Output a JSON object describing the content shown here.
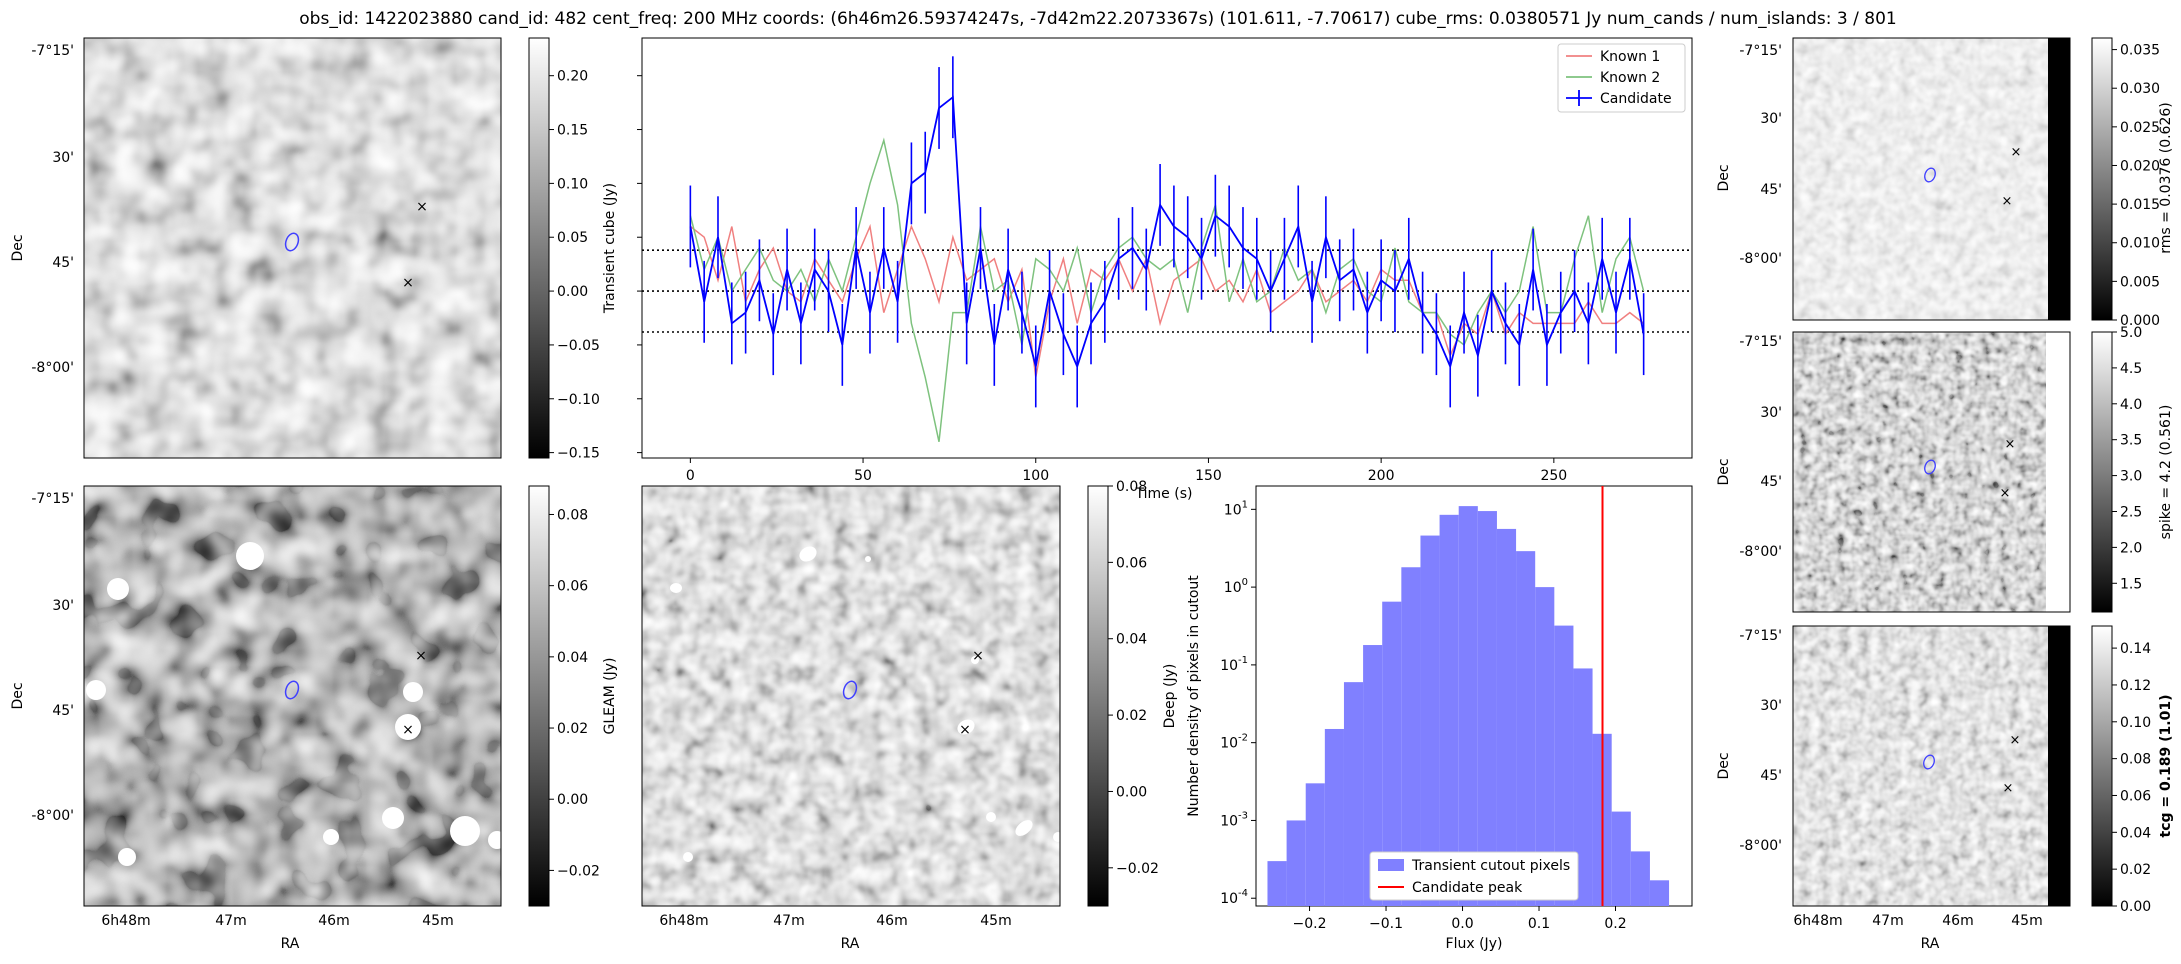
{
  "figure": {
    "title": "obs_id: 1422023880 cand_id: 482 cent_freq: 200 MHz coords: (6h46m26.59374247s, -7d42m22.2073367s) (101.611, -7.70617) cube_rms: 0.0380571 Jy num_cands / num_islands: 3 / 801"
  },
  "colors": {
    "known1": "#f08080",
    "known2": "#7ec27e",
    "candidate": "#0000ff",
    "hist_fill": "#8080ff",
    "peak_line": "#ff0000",
    "marker_green": "#00a000",
    "marker_red": "#ff0000",
    "ellipse": "#4040ff"
  },
  "sky_axes": {
    "ra_label": "RA",
    "dec_label": "Dec",
    "ra_ticks": [
      "6h48m",
      "47m",
      "46m",
      "45m"
    ],
    "dec_ticks": [
      "-7°15'",
      "30'",
      "45'",
      "-8°00'"
    ]
  },
  "images": {
    "transient": {
      "cbar_label": "Transient cube (Jy)",
      "cbar_ticks": [
        0.2,
        0.15,
        0.1,
        0.05,
        0.0,
        -0.05,
        -0.1,
        -0.15
      ],
      "cbar_tick_labels": [
        "0.20",
        "0.15",
        "0.10",
        "0.05",
        "0.00",
        "−0.05",
        "−0.10",
        "−0.15"
      ],
      "cbar_range": [
        -0.155,
        0.235
      ]
    },
    "gleam": {
      "cbar_label": "GLEAM (Jy)",
      "cbar_ticks": [
        0.08,
        0.06,
        0.04,
        0.02,
        0.0,
        -0.02
      ],
      "cbar_tick_labels": [
        "0.08",
        "0.06",
        "0.04",
        "0.02",
        "0.00",
        "−0.02"
      ],
      "cbar_range": [
        -0.03,
        0.088
      ]
    },
    "deep": {
      "cbar_label": "Deep (Jy)",
      "cbar_ticks": [
        0.08,
        0.06,
        0.04,
        0.02,
        0.0,
        -0.02
      ],
      "cbar_tick_labels": [
        "0.08",
        "0.06",
        "0.04",
        "0.02",
        "0.00",
        "−0.02"
      ],
      "cbar_range": [
        -0.03,
        0.08
      ]
    },
    "rms": {
      "cbar_label": "rms = 0.0376 (0.626)",
      "cbar_ticks": [
        0.035,
        0.03,
        0.025,
        0.02,
        0.015,
        0.01,
        0.005,
        0.0
      ],
      "cbar_tick_labels": [
        "0.035",
        "0.030",
        "0.025",
        "0.020",
        "0.015",
        "0.010",
        "0.005",
        "0.000"
      ],
      "cbar_range": [
        0.0,
        0.0365
      ]
    },
    "spike": {
      "cbar_label": "spike = 4.2 (0.561)",
      "cbar_ticks": [
        5.0,
        4.5,
        4.0,
        3.5,
        3.0,
        2.5,
        2.0,
        1.5
      ],
      "cbar_tick_labels": [
        "5.0",
        "4.5",
        "4.0",
        "3.5",
        "3.0",
        "2.5",
        "2.0",
        "1.5"
      ],
      "cbar_range": [
        1.1,
        5.0
      ]
    },
    "tcg": {
      "cbar_label": "tcg = 0.189 (1.01)",
      "cbar_ticks": [
        0.14,
        0.12,
        0.1,
        0.08,
        0.06,
        0.04,
        0.02,
        0.0
      ],
      "cbar_tick_labels": [
        "0.14",
        "0.12",
        "0.10",
        "0.08",
        "0.06",
        "0.04",
        "0.02",
        "0.00"
      ],
      "cbar_range": [
        0.0,
        0.152
      ]
    }
  },
  "chart_data": [
    {
      "type": "line",
      "id": "lightcurve",
      "xlabel": "Time (s)",
      "ylabel": "Transient cube (Jy)",
      "xlim": [
        -14,
        290
      ],
      "ylim": [
        -0.155,
        0.235
      ],
      "x_ticks": [
        0,
        50,
        100,
        150,
        200,
        250
      ],
      "y_ticks": [
        0.2,
        0.15,
        0.1,
        0.05,
        0.0,
        -0.05,
        -0.1,
        -0.15
      ],
      "y_tick_labels": [
        "0.20",
        "0.15",
        "0.10",
        "0.05",
        "0.00",
        "−0.05",
        "−0.10",
        "−0.15"
      ],
      "legend": [
        "Known 1",
        "Known 2",
        "Candidate"
      ],
      "legend_loc": "upper right",
      "hlines": [
        0.038,
        0.0,
        -0.038
      ],
      "x": [
        0,
        4,
        8,
        12,
        16,
        20,
        24,
        28,
        32,
        36,
        40,
        44,
        48,
        52,
        56,
        60,
        64,
        68,
        72,
        76,
        80,
        84,
        88,
        92,
        96,
        100,
        104,
        108,
        112,
        116,
        120,
        124,
        128,
        132,
        136,
        140,
        144,
        148,
        152,
        156,
        160,
        164,
        168,
        172,
        176,
        180,
        184,
        188,
        192,
        196,
        200,
        204,
        208,
        212,
        216,
        220,
        224,
        228,
        232,
        236,
        240,
        244,
        248,
        252,
        256,
        260,
        264,
        268,
        272,
        276
      ],
      "series": [
        {
          "name": "Known 1",
          "values": [
            0.06,
            0.05,
            0.01,
            0.06,
            -0.01,
            0.02,
            0.04,
            0.0,
            -0.01,
            0.03,
            0.01,
            -0.01,
            0.03,
            0.06,
            -0.02,
            0.02,
            0.06,
            0.03,
            -0.01,
            0.05,
            0.01,
            0.02,
            0.03,
            -0.01,
            0.02,
            -0.08,
            -0.01,
            0.03,
            -0.03,
            0.02,
            0.01,
            0.03,
            0.0,
            0.03,
            -0.03,
            0.01,
            0.02,
            0.03,
            0.0,
            0.01,
            -0.01,
            0.02,
            -0.02,
            -0.01,
            0.0,
            0.02,
            -0.01,
            0.0,
            0.01,
            -0.01,
            0.02,
            0.01,
            0.01,
            -0.02,
            -0.02,
            -0.06,
            -0.03,
            -0.04,
            0.0,
            -0.04,
            -0.02,
            -0.03,
            -0.03,
            -0.03,
            -0.03,
            -0.01,
            -0.03,
            -0.03,
            -0.02,
            -0.03
          ]
        },
        {
          "name": "Known 2",
          "values": [
            0.07,
            0.02,
            0.05,
            0.0,
            0.02,
            0.04,
            0.01,
            0.0,
            0.02,
            -0.01,
            0.03,
            0.0,
            0.05,
            0.1,
            0.14,
            0.08,
            -0.03,
            -0.08,
            -0.14,
            -0.02,
            -0.02,
            0.06,
            0.0,
            0.01,
            -0.05,
            0.03,
            0.02,
            0.0,
            0.04,
            -0.02,
            0.02,
            0.04,
            0.05,
            0.03,
            0.02,
            0.03,
            -0.02,
            0.04,
            0.08,
            -0.01,
            0.03,
            -0.01,
            0.0,
            0.04,
            0.01,
            0.02,
            -0.02,
            0.02,
            0.03,
            0.0,
            -0.01,
            0.04,
            -0.01,
            -0.02,
            -0.02,
            -0.04,
            -0.05,
            -0.02,
            0.0,
            -0.02,
            0.0,
            0.06,
            -0.02,
            -0.02,
            0.03,
            0.07,
            -0.02,
            0.03,
            0.05,
            0.0
          ]
        },
        {
          "name": "Candidate",
          "values": [
            0.06,
            -0.01,
            0.05,
            -0.03,
            -0.02,
            0.01,
            -0.04,
            0.02,
            -0.03,
            0.02,
            0.0,
            -0.05,
            0.04,
            -0.02,
            0.04,
            -0.01,
            0.1,
            0.11,
            0.17,
            0.18,
            -0.03,
            0.04,
            -0.05,
            0.02,
            -0.02,
            -0.07,
            0.0,
            -0.04,
            -0.07,
            -0.03,
            -0.01,
            0.03,
            0.04,
            0.02,
            0.08,
            0.06,
            0.05,
            0.03,
            0.07,
            0.06,
            0.04,
            0.03,
            0.0,
            0.03,
            0.06,
            -0.01,
            0.05,
            0.01,
            0.02,
            -0.02,
            0.01,
            0.0,
            0.03,
            -0.02,
            -0.04,
            -0.07,
            -0.02,
            -0.06,
            0.0,
            -0.03,
            -0.05,
            0.02,
            -0.05,
            -0.02,
            0.0,
            -0.03,
            0.03,
            -0.02,
            0.03,
            -0.04
          ]
        }
      ],
      "candidate_errors": 0.038
    },
    {
      "type": "histogram",
      "id": "flux_histogram",
      "xlabel": "Flux (Jy)",
      "ylabel": "Number density of pixels in cutout",
      "xlim": [
        -0.27,
        0.3
      ],
      "ylog_range": [
        -4.1,
        1.3
      ],
      "x_ticks": [
        -0.2,
        -0.1,
        0.0,
        0.1,
        0.2
      ],
      "x_tick_labels": [
        "−0.2",
        "−0.1",
        "0.0",
        "0.1",
        "0.2"
      ],
      "y_ticks_exp": [
        1,
        0,
        -1,
        -2,
        -3,
        -4
      ],
      "y_tick_labels": [
        "10^1",
        "10^0",
        "10^-1",
        "10^-2",
        "10^-3",
        "10^-4"
      ],
      "bin_edges": [
        -0.255,
        -0.23,
        -0.205,
        -0.18,
        -0.155,
        -0.13,
        -0.105,
        -0.08,
        -0.055,
        -0.03,
        -0.005,
        0.02,
        0.045,
        0.07,
        0.095,
        0.12,
        0.145,
        0.17,
        0.195,
        0.22,
        0.245,
        0.27
      ],
      "density": [
        0.0003,
        0.001,
        0.003,
        0.015,
        0.06,
        0.18,
        0.65,
        1.8,
        4.6,
        8.5,
        11.0,
        9.5,
        5.6,
        2.9,
        1.0,
        0.32,
        0.09,
        0.013,
        0.0013,
        0.0004,
        0.00017
      ],
      "candidate_peak": 0.183,
      "legend": [
        "Transient cutout pixels",
        "Candidate peak"
      ],
      "legend_loc": "lower center"
    }
  ]
}
